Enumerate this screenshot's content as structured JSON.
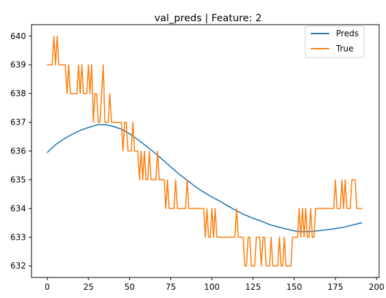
{
  "chart_data": {
    "type": "line",
    "title": "val_preds | Feature: 2",
    "xlabel": "",
    "ylabel": "",
    "xlim": [
      -9.6,
      201.6
    ],
    "ylim": [
      631.6,
      640.4
    ],
    "xticks": [
      0,
      25,
      50,
      75,
      100,
      125,
      150,
      175,
      200
    ],
    "yticks": [
      632,
      633,
      634,
      635,
      636,
      637,
      638,
      639,
      640
    ],
    "grid": false,
    "legend_position": "top-right",
    "series": [
      {
        "name": "Preds",
        "color": "#1f77b4",
        "x": [
          0,
          5,
          10,
          15,
          20,
          25,
          30,
          35,
          40,
          45,
          50,
          55,
          60,
          65,
          70,
          75,
          80,
          85,
          90,
          95,
          100,
          105,
          110,
          115,
          120,
          125,
          130,
          135,
          140,
          145,
          150,
          155,
          160,
          165,
          170,
          175,
          180,
          185,
          191
        ],
        "y": [
          635.95,
          636.22,
          636.42,
          636.58,
          636.72,
          636.82,
          636.91,
          636.92,
          636.86,
          636.76,
          636.6,
          636.4,
          636.18,
          635.95,
          635.7,
          635.45,
          635.2,
          634.98,
          634.76,
          634.57,
          634.4,
          634.25,
          634.08,
          633.92,
          633.78,
          633.66,
          633.56,
          633.44,
          633.36,
          633.29,
          633.22,
          633.19,
          633.2,
          633.23,
          633.26,
          633.3,
          633.35,
          633.42,
          633.5
        ]
      },
      {
        "name": "True",
        "color": "#ff7f0e",
        "x": [
          0,
          1,
          2,
          3,
          4,
          5,
          6,
          7,
          8,
          9,
          10,
          11,
          12,
          13,
          14,
          15,
          16,
          17,
          18,
          19,
          20,
          21,
          22,
          23,
          24,
          25,
          26,
          27,
          28,
          29,
          30,
          31,
          32,
          33,
          34,
          35,
          36,
          37,
          38,
          39,
          40,
          41,
          42,
          43,
          44,
          45,
          46,
          47,
          48,
          49,
          50,
          51,
          52,
          53,
          54,
          55,
          56,
          57,
          58,
          59,
          60,
          61,
          62,
          63,
          64,
          65,
          66,
          67,
          68,
          69,
          70,
          71,
          72,
          73,
          74,
          75,
          76,
          77,
          78,
          79,
          80,
          81,
          82,
          83,
          84,
          85,
          86,
          87,
          88,
          89,
          90,
          91,
          92,
          93,
          94,
          95,
          96,
          97,
          98,
          99,
          100,
          101,
          102,
          103,
          104,
          105,
          106,
          107,
          108,
          109,
          110,
          111,
          112,
          113,
          114,
          115,
          116,
          117,
          118,
          119,
          120,
          121,
          122,
          123,
          124,
          125,
          126,
          127,
          128,
          129,
          130,
          131,
          132,
          133,
          134,
          135,
          136,
          137,
          138,
          139,
          140,
          141,
          142,
          143,
          144,
          145,
          146,
          147,
          148,
          149,
          150,
          151,
          152,
          153,
          154,
          155,
          156,
          157,
          158,
          159,
          160,
          161,
          162,
          163,
          164,
          165,
          166,
          167,
          168,
          169,
          170,
          171,
          172,
          173,
          174,
          175,
          176,
          177,
          178,
          179,
          180,
          181,
          182,
          183,
          184,
          185,
          186,
          187,
          188,
          189,
          190,
          191
        ],
        "y": [
          639,
          639,
          639,
          639,
          640,
          639,
          640,
          639,
          639,
          639,
          639,
          639,
          638,
          639,
          638,
          638,
          638,
          638,
          638,
          639,
          638,
          639,
          638,
          638,
          638,
          639,
          638,
          639,
          637,
          638,
          638,
          637,
          637,
          638,
          639,
          637,
          637,
          637,
          638,
          637,
          637,
          637,
          637,
          637,
          637,
          637,
          636,
          637,
          637,
          636,
          636,
          636,
          637,
          636,
          636,
          636,
          635,
          636,
          635,
          636,
          635,
          635,
          636,
          635,
          635,
          635,
          635,
          636,
          635,
          635,
          635,
          635,
          634,
          635,
          634,
          634,
          634,
          634,
          635,
          634,
          634,
          634,
          634,
          634,
          634,
          635,
          634,
          634,
          634,
          634,
          634,
          634,
          634,
          634,
          634,
          634,
          633,
          634,
          633,
          633,
          634,
          633,
          634,
          633,
          633,
          633,
          633,
          633,
          633,
          633,
          633,
          633,
          633,
          633,
          633,
          634,
          633,
          633,
          633,
          633,
          632,
          632,
          633,
          633,
          632,
          632,
          632,
          633,
          633,
          633,
          632,
          633,
          633,
          632,
          632,
          632,
          633,
          632,
          632,
          632,
          632,
          633,
          632,
          632,
          633,
          632,
          632,
          632,
          632,
          633,
          633,
          633,
          633,
          634,
          633,
          634,
          633,
          634,
          633,
          633,
          634,
          633,
          633,
          634,
          634,
          634,
          634,
          634,
          634,
          634,
          634,
          634,
          634,
          634,
          634,
          635,
          634,
          634,
          634,
          635,
          634,
          635,
          634,
          634,
          634,
          635,
          635,
          635,
          634,
          634,
          634,
          634
        ]
      }
    ]
  }
}
